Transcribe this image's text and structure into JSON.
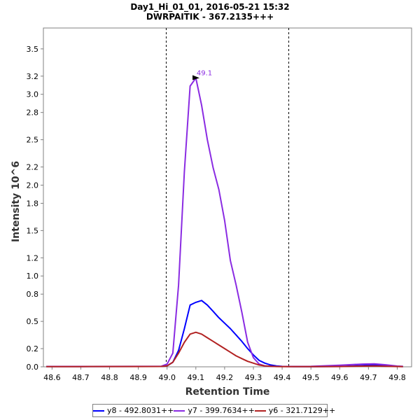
{
  "chart_data": {
    "type": "line",
    "title": "Day1_Hi_01_01, 2016-05-21 15:32",
    "subtitle": "DWRPAITIK - 367.2135+++",
    "xlabel": "Retention Time",
    "ylabel": "Intensity 10^6",
    "xlim": [
      48.57,
      49.85
    ],
    "ylim": [
      0,
      3.73
    ],
    "x_ticks": [
      48.6,
      48.7,
      48.8,
      48.9,
      49.0,
      49.1,
      49.2,
      49.3,
      49.4,
      49.5,
      49.6,
      49.7,
      49.8
    ],
    "y_ticks": [
      0.0,
      0.2,
      0.5,
      0.8,
      1.0,
      1.2,
      1.5,
      1.8,
      2.0,
      2.2,
      2.5,
      2.8,
      3.0,
      3.2,
      3.5
    ],
    "y_tick_labels": [
      "0.0",
      "0.2",
      "0.5",
      "0.8",
      "1.0",
      "1.2",
      "1.5",
      "1.8",
      "2.0",
      "2.2",
      "2.5",
      "2.8",
      "3.0",
      "3.2",
      "3.5"
    ],
    "boundaries": [
      48.997,
      49.423
    ],
    "annotation": {
      "text": "49.1",
      "x": 49.12,
      "y": 3.18
    },
    "series": [
      {
        "name": "y8 - 492.8031++",
        "color": "#0000ff",
        "x": [
          48.58,
          48.7,
          48.9,
          48.98,
          49.0,
          49.02,
          49.04,
          49.06,
          49.08,
          49.1,
          49.12,
          49.14,
          49.16,
          49.18,
          49.2,
          49.22,
          49.24,
          49.26,
          49.28,
          49.3,
          49.32,
          49.34,
          49.36,
          49.38,
          49.4,
          49.42,
          49.44,
          49.5,
          49.6,
          49.68,
          49.72,
          49.76,
          49.8,
          49.82
        ],
        "y": [
          0.003,
          0.003,
          0.004,
          0.005,
          0.01,
          0.05,
          0.18,
          0.42,
          0.68,
          0.71,
          0.73,
          0.68,
          0.61,
          0.54,
          0.48,
          0.42,
          0.35,
          0.28,
          0.2,
          0.13,
          0.07,
          0.04,
          0.02,
          0.01,
          0.005,
          0.003,
          0.002,
          0.002,
          0.004,
          0.015,
          0.02,
          0.012,
          0.005,
          0.003
        ]
      },
      {
        "name": "y7 - 399.7634++",
        "color": "#8a2be2",
        "x": [
          48.58,
          48.7,
          48.9,
          48.98,
          49.0,
          49.02,
          49.04,
          49.06,
          49.08,
          49.1,
          49.12,
          49.14,
          49.16,
          49.18,
          49.2,
          49.22,
          49.24,
          49.26,
          49.28,
          49.3,
          49.32,
          49.34,
          49.36,
          49.38,
          49.4,
          49.42,
          49.44,
          49.5,
          49.6,
          49.68,
          49.72,
          49.76,
          49.8,
          49.82
        ],
        "y": [
          0.004,
          0.004,
          0.005,
          0.006,
          0.03,
          0.15,
          0.9,
          2.15,
          3.09,
          3.18,
          2.88,
          2.5,
          2.19,
          1.95,
          1.61,
          1.17,
          0.9,
          0.6,
          0.27,
          0.1,
          0.03,
          0.01,
          0.005,
          0.004,
          0.004,
          0.004,
          0.004,
          0.005,
          0.018,
          0.03,
          0.032,
          0.022,
          0.008,
          0.005
        ]
      },
      {
        "name": "y6 - 321.7129++",
        "color": "#b22222",
        "x": [
          48.58,
          48.7,
          48.9,
          48.98,
          49.0,
          49.02,
          49.04,
          49.06,
          49.08,
          49.1,
          49.12,
          49.14,
          49.16,
          49.18,
          49.2,
          49.22,
          49.24,
          49.26,
          49.28,
          49.3,
          49.32,
          49.34,
          49.36,
          49.38,
          49.4,
          49.42,
          49.44,
          49.5,
          49.6,
          49.68,
          49.72,
          49.76,
          49.8,
          49.82
        ],
        "y": [
          0.002,
          0.002,
          0.003,
          0.004,
          0.01,
          0.05,
          0.15,
          0.27,
          0.36,
          0.38,
          0.36,
          0.32,
          0.28,
          0.24,
          0.2,
          0.16,
          0.12,
          0.09,
          0.06,
          0.04,
          0.02,
          0.01,
          0.006,
          0.003,
          0.002,
          0.002,
          0.002,
          0.002,
          0.003,
          0.008,
          0.01,
          0.006,
          0.003,
          0.002
        ]
      }
    ]
  }
}
